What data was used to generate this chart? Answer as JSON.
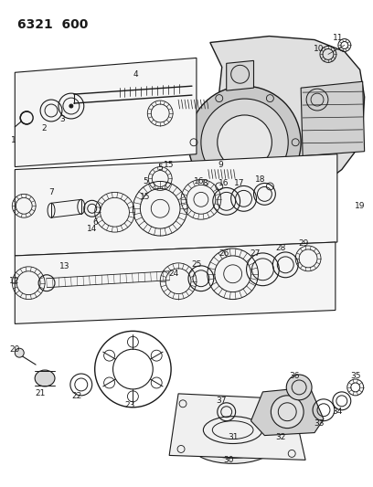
{
  "title": "6321  600",
  "bg": "#ffffff",
  "lc": "#1a1a1a",
  "figsize": [
    4.08,
    5.33
  ],
  "dpi": 100,
  "title_fontsize": 10,
  "label_fontsize": 6.5
}
